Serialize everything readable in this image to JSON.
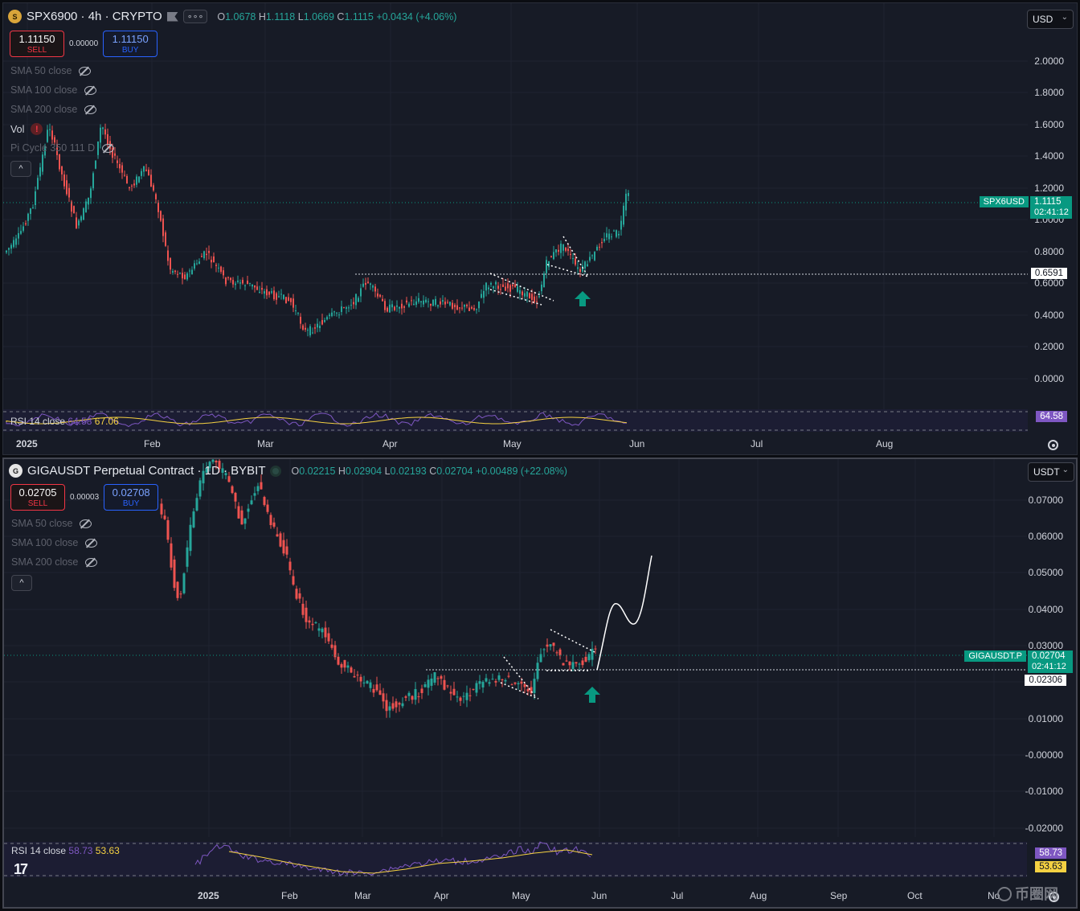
{
  "pane1": {
    "symbol": "SPX6900 · 4h · CRYPTO",
    "logo_icon": "spx-coin-icon",
    "more_label": "∘∘∘",
    "ohlc": {
      "o_key": "O",
      "o": "1.0678",
      "h_key": "H",
      "h": "1.1118",
      "l_key": "L",
      "l": "1.0669",
      "c_key": "C",
      "c": "1.1115",
      "change": "+0.0434 (+4.06%)"
    },
    "sell_price": "1.11150",
    "sell_label": "SELL",
    "spread": "0.00000",
    "buy_price": "1.11150",
    "buy_label": "BUY",
    "indicators": [
      "SMA 50 close",
      "SMA 100 close",
      "SMA 200 close"
    ],
    "vol_label": "Vol",
    "pi_cycle": "Pi Cycle 350 111 D",
    "collapse_label": "^",
    "currency": "USD",
    "price_axis": [
      "2.0000",
      "1.8000",
      "1.6000",
      "1.4000",
      "1.2000",
      "1.0000",
      "0.8000",
      "0.6000",
      "0.4000",
      "0.2000",
      "0.0000"
    ],
    "symbol_tag": "SPX6USD",
    "last_price": "1.1115",
    "countdown": "02:41:12",
    "level_tag": "0.6591",
    "rsi_label": "RSI 14 close",
    "rsi_value": "64.58",
    "rsi_ma": "67.06",
    "time_axis": [
      "2025",
      "Feb",
      "Mar",
      "Apr",
      "May",
      "Jun",
      "Jul",
      "Aug"
    ],
    "up_color": "#26a69a",
    "down_color": "#ef5350",
    "arrow_color": "#089981"
  },
  "pane2": {
    "symbol": "GIGAUSDT Perpetual Contract · 1D · BYBIT",
    "logo_icon": "giga-coin-icon",
    "ohlc": {
      "o_key": "O",
      "o": "0.02215",
      "h_key": "H",
      "h": "0.02904",
      "l_key": "L",
      "l": "0.02193",
      "c_key": "C",
      "c": "0.02704",
      "change": "+0.00489 (+22.08%)"
    },
    "sell_price": "0.02705",
    "sell_label": "SELL",
    "spread": "0.00003",
    "buy_price": "0.02708",
    "buy_label": "BUY",
    "indicators": [
      "SMA 50 close",
      "SMA 100 close",
      "SMA 200 close"
    ],
    "collapse_label": "^",
    "currency": "USDT",
    "price_axis": [
      "0.07000",
      "0.06000",
      "0.05000",
      "0.04000",
      "0.03000",
      "0.01000",
      "-0.00000",
      "-0.01000",
      "-0.02000"
    ],
    "symbol_tag": "GIGAUSDT.P",
    "last_price": "0.02704",
    "countdown": "02:41:12",
    "level_tag": "0.02306",
    "rsi_label": "RSI 14 close",
    "rsi_value": "58.73",
    "rsi_ma": "53.63",
    "time_axis": [
      "2025",
      "Feb",
      "Mar",
      "Apr",
      "May",
      "Jun",
      "Jul",
      "Aug",
      "Sep",
      "Oct",
      "No"
    ],
    "tv_logo": "17"
  },
  "watermark": "币圈网"
}
